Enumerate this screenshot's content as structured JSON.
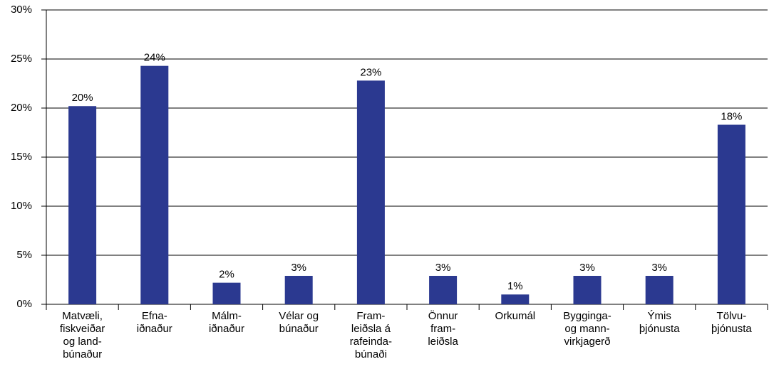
{
  "chart_data": {
    "type": "bar",
    "categories": [
      [
        "Matvæli,",
        "fiskveiðar",
        "og land-",
        "búnaður"
      ],
      [
        "Efna-",
        "iðnaður"
      ],
      [
        "Málm-",
        "iðnaður"
      ],
      [
        "Vélar og",
        "búnaður"
      ],
      [
        "Fram-",
        "leiðsla á",
        "rafeinda-",
        "búnaði"
      ],
      [
        "Önnur",
        "fram-",
        "leiðsla"
      ],
      [
        "Orkumál"
      ],
      [
        "Bygginga-",
        "og mann-",
        "virkjagerð"
      ],
      [
        "Ýmis",
        "þjónusta"
      ],
      [
        "Tölvu-",
        "þjónusta"
      ]
    ],
    "values": [
      20.2,
      24.3,
      2.2,
      2.9,
      22.8,
      2.9,
      1.0,
      2.9,
      2.9,
      18.3
    ],
    "value_labels": [
      "20%",
      "24%",
      "2%",
      "3%",
      "23%",
      "3%",
      "1%",
      "3%",
      "3%",
      "18%"
    ],
    "color": "#2b3990",
    "ylim": [
      0,
      30
    ],
    "yticks": [
      {
        "value": 0,
        "label": "0%"
      },
      {
        "value": 5,
        "label": "5%"
      },
      {
        "value": 10,
        "label": "10%"
      },
      {
        "value": 15,
        "label": "15%"
      },
      {
        "value": 20,
        "label": "20%"
      },
      {
        "value": 25,
        "label": "25%"
      },
      {
        "value": 30,
        "label": "30%"
      }
    ],
    "grid": true
  }
}
